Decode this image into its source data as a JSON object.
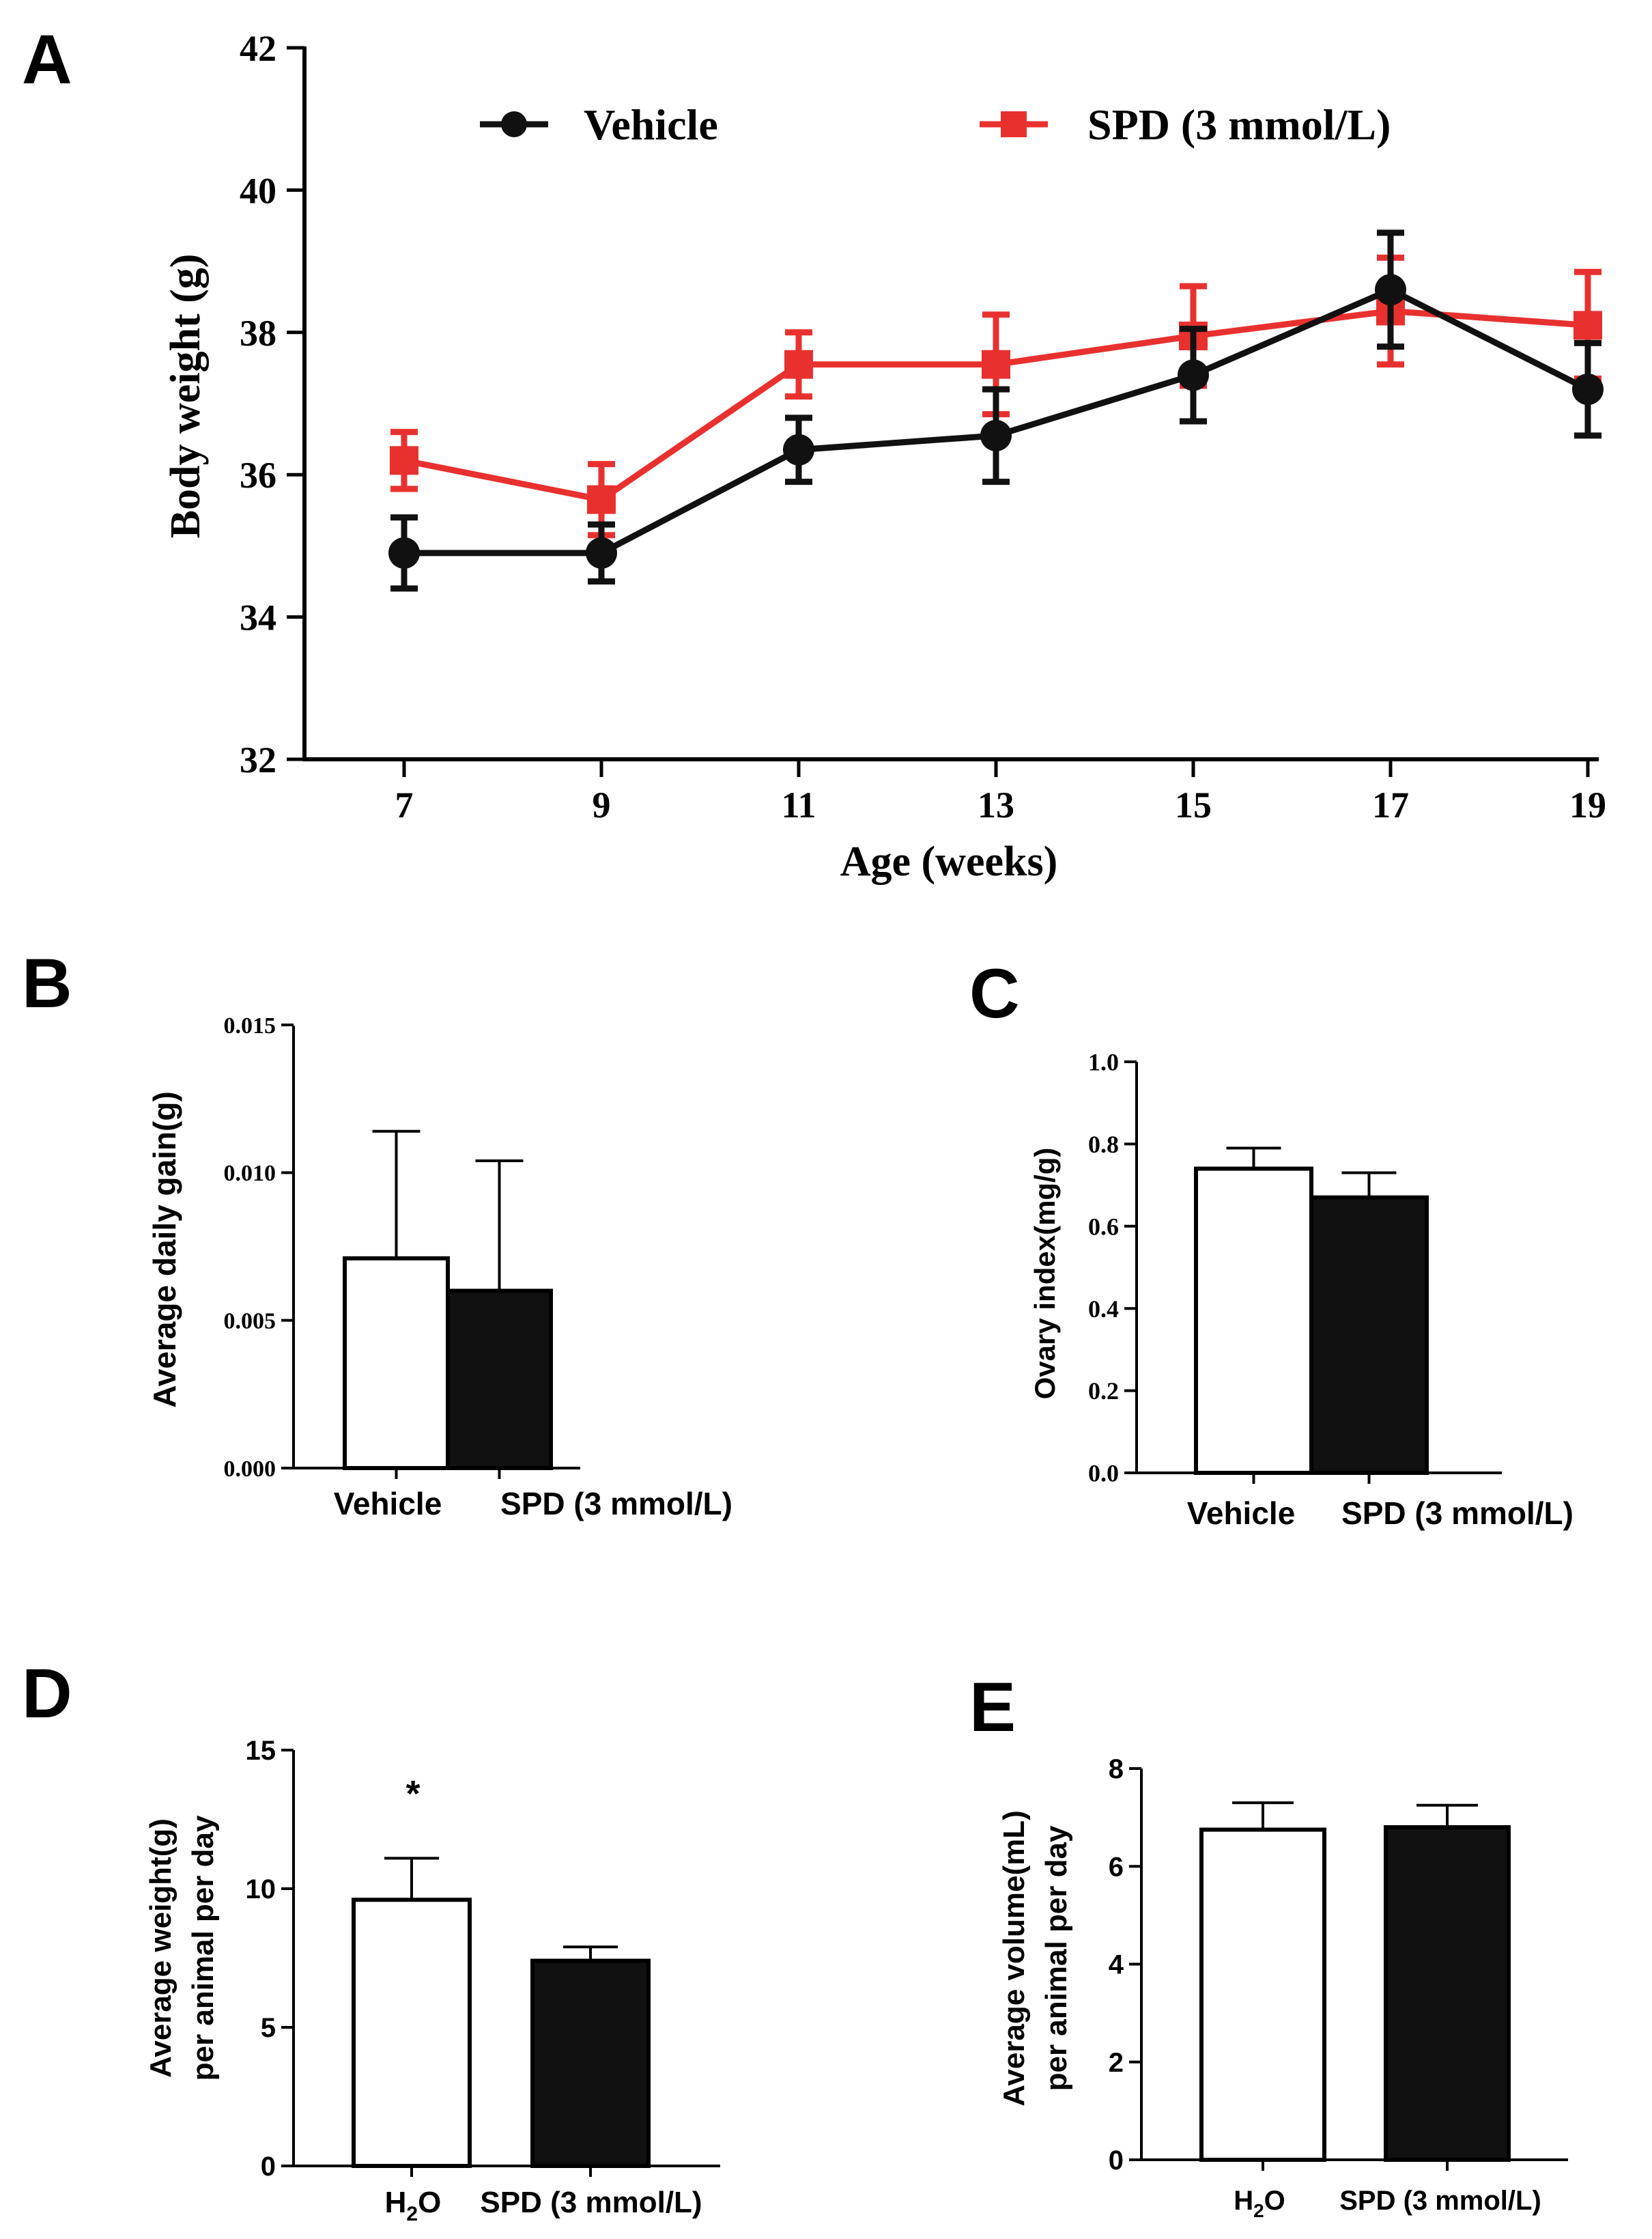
{
  "colors": {
    "vehicle": "#111111",
    "spd": "#e8312f",
    "axis": "#000000",
    "bar_empty": "#ffffff",
    "bar_filled": "#111111"
  },
  "chart_data": [
    {
      "panel": "A",
      "type": "line",
      "xlabel": "Age (weeks)",
      "ylabel": "Body weight (g)",
      "x": [
        7,
        9,
        11,
        13,
        15,
        17,
        19
      ],
      "ylim": [
        32,
        42
      ],
      "yticks": [
        "32",
        "34",
        "36",
        "38",
        "40",
        "42"
      ],
      "xticks": [
        "7",
        "9",
        "11",
        "13",
        "15",
        "17",
        "19"
      ],
      "legend_position": "top",
      "series": [
        {
          "name": "Vehicle",
          "color": "#111111",
          "marker": "circle",
          "values": [
            34.9,
            34.9,
            36.35,
            36.55,
            37.4,
            38.6,
            37.2
          ],
          "errors": [
            0.5,
            0.4,
            0.45,
            0.65,
            0.65,
            0.8,
            0.65
          ]
        },
        {
          "name": "SPD (3 mmol/L)",
          "color": "#e8312f",
          "marker": "square",
          "values": [
            36.2,
            35.65,
            37.55,
            37.55,
            37.95,
            38.3,
            38.1
          ],
          "errors": [
            0.4,
            0.5,
            0.45,
            0.7,
            0.7,
            0.75,
            0.75
          ]
        }
      ]
    },
    {
      "panel": "B",
      "type": "bar",
      "ylabel": "Average daily gain(g)",
      "categories": [
        "Vehicle",
        "SPD (3 mmol/L)"
      ],
      "values": [
        0.0071,
        0.006
      ],
      "errors": [
        0.0043,
        0.0044
      ],
      "ylim": [
        0,
        0.015
      ],
      "yticks": [
        "0.000",
        "0.005",
        "0.010",
        "0.015"
      ]
    },
    {
      "panel": "C",
      "type": "bar",
      "ylabel": "Ovary index(mg/g)",
      "categories": [
        "Vehicle",
        "SPD (3 mmol/L)"
      ],
      "values": [
        0.74,
        0.67
      ],
      "errors": [
        0.05,
        0.06
      ],
      "ylim": [
        0,
        1.0
      ],
      "yticks": [
        "0.0",
        "0.2",
        "0.4",
        "0.6",
        "0.8",
        "1.0"
      ]
    },
    {
      "panel": "D",
      "type": "bar",
      "ylabel": [
        "Average weight(g)",
        "per animal per day"
      ],
      "categories": [
        "H2O",
        "SPD (3 mmol/L)"
      ],
      "values": [
        9.6,
        7.4
      ],
      "errors": [
        1.5,
        0.5
      ],
      "ylim": [
        0,
        15
      ],
      "yticks": [
        "0",
        "5",
        "10",
        "15"
      ],
      "annotation": "*"
    },
    {
      "panel": "E",
      "type": "bar",
      "ylabel": [
        "Average volume(mL)",
        "per animal per day"
      ],
      "categories": [
        "H2O",
        "SPD (3 mmol/L)"
      ],
      "values": [
        6.75,
        6.8
      ],
      "errors": [
        0.55,
        0.45
      ],
      "ylim": [
        0,
        8
      ],
      "yticks": [
        "0",
        "2",
        "4",
        "6",
        "8"
      ]
    }
  ]
}
